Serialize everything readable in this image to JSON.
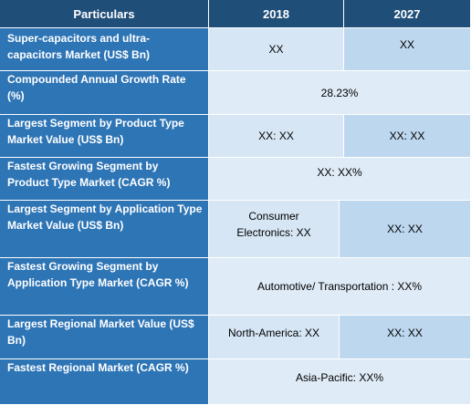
{
  "header": {
    "particulars": "Particulars",
    "year1": "2018",
    "year2": "2027"
  },
  "rows": [
    {
      "label": "Super-capacitors and ultra-capacitors Market (US$ Bn)",
      "v2018": "XX",
      "v2027": "XX"
    },
    {
      "label": "Compounded Annual Growth Rate (%)",
      "span": "28.23%"
    },
    {
      "label": "Largest Segment by Product Type Market Value (US$ Bn)",
      "v2018": "XX: XX",
      "v2027": "XX: XX"
    },
    {
      "label": "Fastest Growing Segment by Product Type Market (CAGR %)",
      "span": "XX: XX%"
    },
    {
      "label": "Largest Segment by Application Type Market Value (US$ Bn)",
      "v2018": "Consumer Electronics: XX",
      "v2027": "XX: XX"
    },
    {
      "label": "Fastest Growing Segment by Application Type Market (CAGR %)",
      "span": "Automotive/ Transportation : XX%"
    },
    {
      "label": "Largest Regional Market Value (US$ Bn)",
      "v2018": "North-America: XX",
      "v2027": "XX: XX"
    },
    {
      "label": "Fastest Regional Market (CAGR %)",
      "span": "Asia-Pacific: XX%"
    }
  ]
}
